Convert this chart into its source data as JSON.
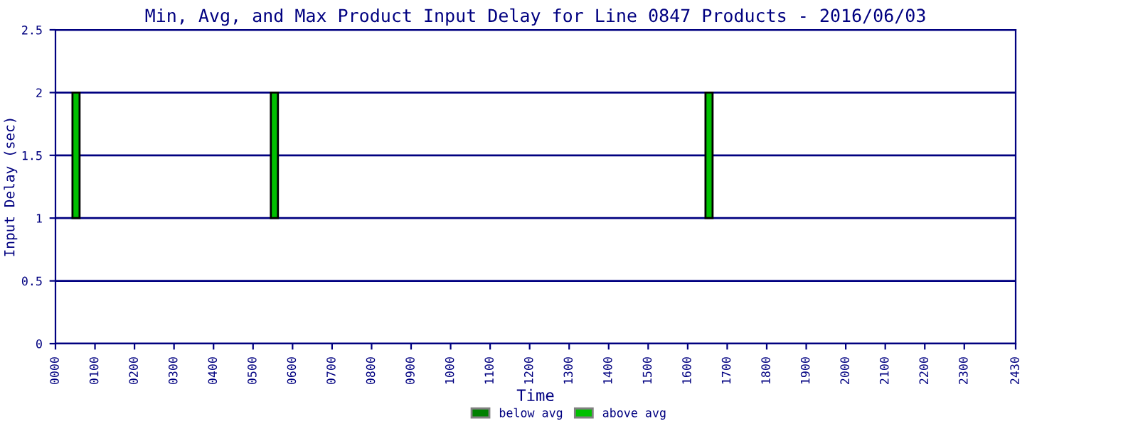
{
  "chart_data": {
    "type": "bar",
    "title": "Min, Avg, and Max Product Input Delay for Line 0847 Products - 2016/06/03",
    "xlabel": "Time",
    "ylabel": "Input Delay (sec)",
    "x": [
      52,
      554,
      1654
    ],
    "series": [
      {
        "name": "below avg",
        "color": "#008000",
        "values": [
          null,
          null,
          null
        ]
      },
      {
        "name": "above avg",
        "color": "#00c000",
        "base": [
          1,
          1,
          1
        ],
        "values": [
          1,
          1,
          1
        ]
      }
    ],
    "xlim": [
      0,
      2430
    ],
    "xticks": [
      {
        "value": 0,
        "label": "0000"
      },
      {
        "value": 100,
        "label": "0100"
      },
      {
        "value": 200,
        "label": "0200"
      },
      {
        "value": 300,
        "label": "0300"
      },
      {
        "value": 400,
        "label": "0400"
      },
      {
        "value": 500,
        "label": "0500"
      },
      {
        "value": 600,
        "label": "0600"
      },
      {
        "value": 700,
        "label": "0700"
      },
      {
        "value": 800,
        "label": "0800"
      },
      {
        "value": 900,
        "label": "0900"
      },
      1000,
      1100,
      1200,
      1300,
      1400,
      1500,
      1600,
      1700,
      1800,
      1900,
      2000,
      2100,
      2200,
      2300,
      2430
    ],
    "ylim": [
      0,
      2.5
    ],
    "yticks": [
      0,
      0.5,
      1,
      1.5,
      2,
      2.5
    ],
    "grid": "y",
    "legend": "bottom"
  }
}
